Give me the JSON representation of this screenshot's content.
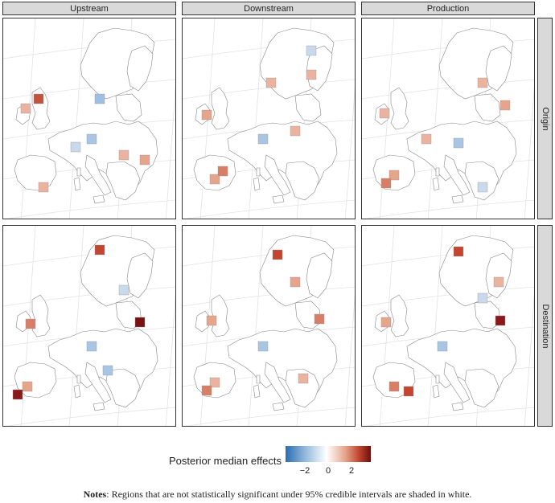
{
  "columns": [
    "Upstream",
    "Downstream",
    "Production"
  ],
  "rows": [
    "Origin",
    "Destination"
  ],
  "legend": {
    "title": "Posterior median effects",
    "ticks": [
      {
        "label": "−2",
        "value": -2
      },
      {
        "label": "0",
        "value": 0
      },
      {
        "label": "2",
        "value": 2
      }
    ],
    "colors": [
      "#2c6cb3",
      "#ffffff",
      "#c2452f",
      "#6b0f0f"
    ]
  },
  "notes": {
    "label": "Notes",
    "text": ": Regions that are not statistically significant under 95% credible intervals are shaded in white."
  }
}
